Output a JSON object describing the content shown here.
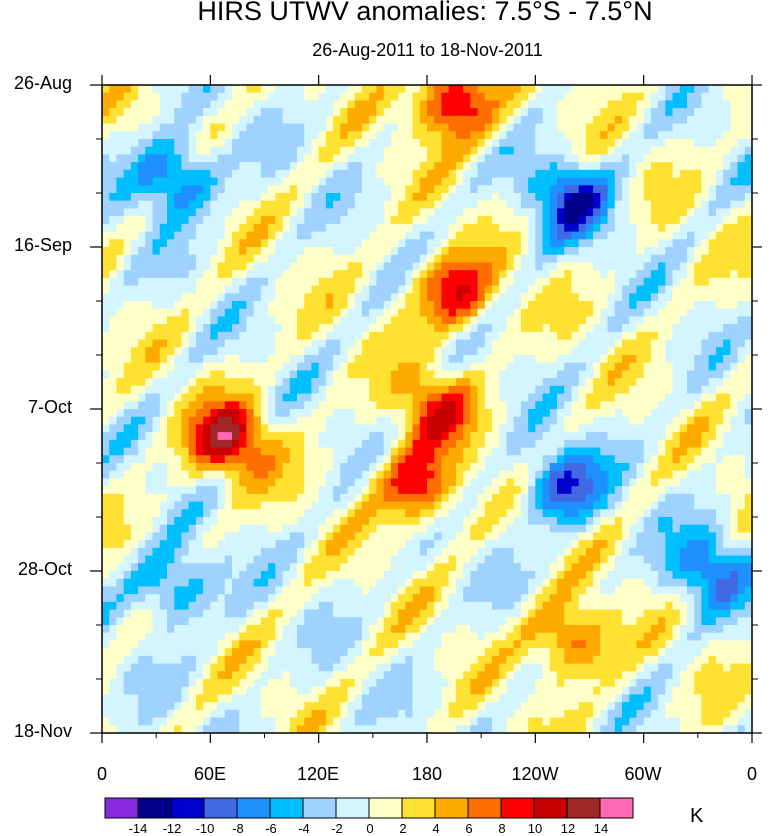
{
  "chart_data": {
    "type": "heatmap",
    "title": "HIRS UTWV anomalies: 7.5°S - 7.5°N",
    "subtitle": "26-Aug-2011 to 18-Nov-2011",
    "x_ticks": [
      "0",
      "60E",
      "120E",
      "180",
      "120W",
      "60W",
      "0"
    ],
    "x_tick_lon": [
      0,
      60,
      120,
      180,
      240,
      300,
      360
    ],
    "y_ticks": [
      "26-Aug",
      "16-Sep",
      "7-Oct",
      "28-Oct",
      "18-Nov"
    ],
    "y_tick_day": [
      0,
      21,
      42,
      63,
      84
    ],
    "xlim": [
      0,
      360
    ],
    "ylim_days": [
      0,
      84
    ],
    "colorbar": {
      "units": "K",
      "levels": [
        "-14",
        "-12",
        "-10",
        "-8",
        "-6",
        "-4",
        "-2",
        "0",
        "2",
        "4",
        "6",
        "8",
        "10",
        "12",
        "14"
      ],
      "colors": [
        "#8a2be2",
        "#00008b",
        "#0000cd",
        "#4169e1",
        "#1e90ff",
        "#00bfff",
        "#a0d2ff",
        "#d2f5ff",
        "#ffffc8",
        "#ffe132",
        "#ffaa00",
        "#ff6e00",
        "#ff0000",
        "#c80000",
        "#a02828",
        "#ff69b4"
      ]
    },
    "anomaly_features": [
      {
        "name": "warm band",
        "lon": 185,
        "day": 42,
        "value": 8
      },
      {
        "name": "warm core",
        "lon": 195,
        "day": 2,
        "value": 12
      },
      {
        "name": "warm core",
        "lon": 70,
        "day": 46,
        "value": 12
      },
      {
        "name": "warm core",
        "lon": 175,
        "day": 52,
        "value": 10
      },
      {
        "name": "warm core",
        "lon": 195,
        "day": 27,
        "value": 10
      },
      {
        "name": "warm core",
        "lon": 260,
        "day": 72,
        "value": 9
      },
      {
        "name": "cold core",
        "lon": 40,
        "day": 12,
        "value": -10
      },
      {
        "name": "cold core",
        "lon": 255,
        "day": 52,
        "value": -10
      },
      {
        "name": "cold core",
        "lon": 260,
        "day": 15,
        "value": -10
      },
      {
        "name": "cold core",
        "lon": 40,
        "day": 65,
        "value": -8
      },
      {
        "name": "cold core",
        "lon": 335,
        "day": 63,
        "value": -8
      }
    ]
  }
}
